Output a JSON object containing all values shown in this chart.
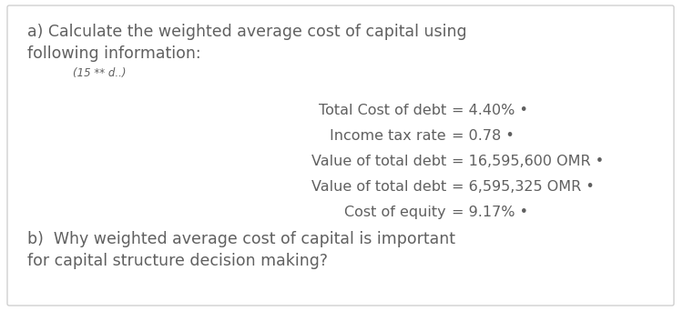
{
  "bg_color": "#ffffff",
  "border_color": "#d0d0d0",
  "text_color": "#606060",
  "title_a": "a) Calculate the weighted average cost of capital using\nfollowing information:",
  "subtitle_hint": "(15 ** d..)",
  "lines": [
    {
      "label": "Total Cost of debt",
      "value": "= 4.40% •"
    },
    {
      "label": "Income tax rate",
      "value": "= 0.78 •"
    },
    {
      "label": "Value of total debt",
      "value": "= 16,595,600 OMR •"
    },
    {
      "label": "Value of total debt",
      "value": "= 6,595,325 OMR •"
    },
    {
      "label": "Cost of equity",
      "value": "= 9.17% •"
    }
  ],
  "title_b": "b)  Why weighted average cost of capital is important\nfor capital structure decision making?",
  "fontsize_title": 12.5,
  "fontsize_data": 11.5,
  "fontsize_subtitle": 8.5
}
